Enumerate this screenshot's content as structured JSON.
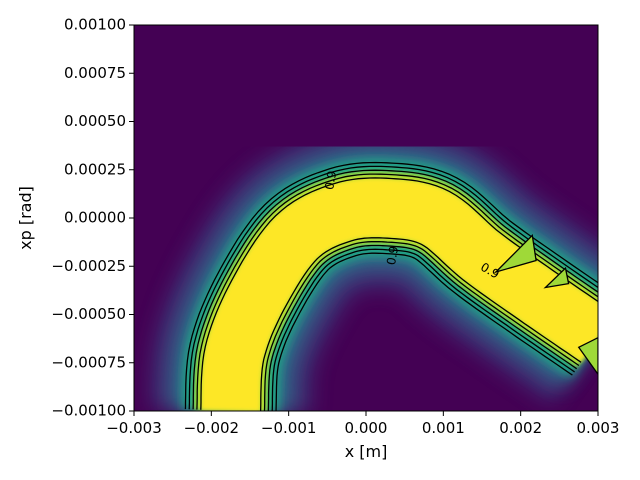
{
  "chart_data": {
    "type": "heatmap",
    "title": "",
    "xlabel": "x [m]",
    "ylabel": "xp [rad]",
    "xlim": [
      -0.003,
      0.003
    ],
    "ylim": [
      -0.001,
      0.001
    ],
    "x_ticks": [
      -0.003,
      -0.002,
      -0.001,
      0.0,
      0.001,
      0.002,
      0.003
    ],
    "x_tick_labels": [
      "−0.003",
      "−0.002",
      "−0.001",
      "0.000",
      "0.001",
      "0.002",
      "0.003"
    ],
    "y_ticks": [
      0.001,
      0.00075,
      0.0005,
      0.00025,
      0.0,
      -0.00025,
      -0.0005,
      -0.00075,
      -0.001
    ],
    "y_tick_labels": [
      "0.00100",
      "0.00075",
      "0.00050",
      "0.00025",
      "0.00000",
      "−0.00025",
      "−0.00050",
      "−0.00075",
      "−0.00100"
    ],
    "colormap": "viridis",
    "grid": false,
    "legend": "none",
    "contour_levels": [
      0.5,
      0.6,
      0.7,
      0.8,
      0.9
    ],
    "contour_labels": [
      {
        "text": "0.9",
        "x": -0.00045,
        "y": 0.000195,
        "angle": -80
      },
      {
        "text": "0.9",
        "x": 0.00035,
        "y": -0.000195,
        "angle": -80
      },
      {
        "text": "0.9",
        "x": 0.0016,
        "y": -0.000275,
        "angle": 30
      }
    ],
    "band": {
      "description": "high-density arch",
      "centerline": [
        [
          -0.00175,
          -0.001
        ],
        [
          -0.0017,
          -0.0007
        ],
        [
          -0.0014,
          -0.0004
        ],
        [
          -0.0009,
          -0.0001
        ],
        [
          -0.0003,
          3e-05
        ],
        [
          0.0003,
          5e-05
        ],
        [
          0.0009,
          0.0
        ],
        [
          0.0015,
          -0.0002
        ],
        [
          0.0022,
          -0.0004
        ],
        [
          0.003,
          -0.00062
        ]
      ],
      "inner_half_width": 0.000155,
      "outer_half_width": 0.000235
    },
    "colors": {
      "background": "#440154",
      "peak": "#fde725",
      "shoulder": "#9fd938",
      "mid": "#2a788e",
      "low": "#3b528b",
      "contour": "#000000"
    }
  }
}
